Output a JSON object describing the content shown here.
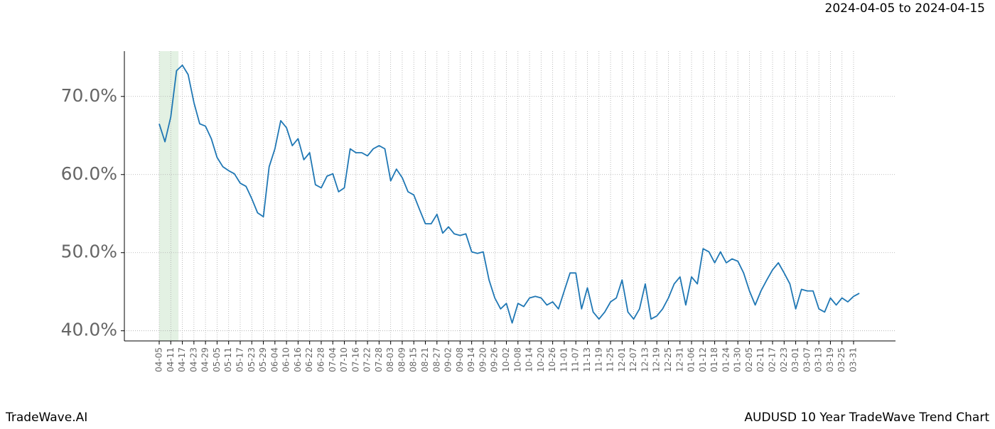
{
  "header": {
    "start": "2024-04-05",
    "separator": "to",
    "end": "2024-04-15"
  },
  "footer": {
    "brand": "TradeWave.AI",
    "caption": "AUDUSD 10 Year TradeWave Trend Chart"
  },
  "chart_data": {
    "type": "line",
    "color": "#1f77b4",
    "highlight_color": "#e3f1e3",
    "grid": true,
    "categories": [
      "04-05",
      null,
      "04-11",
      null,
      "04-17",
      null,
      "04-23",
      null,
      "04-29",
      null,
      "05-05",
      null,
      "05-11",
      null,
      "05-17",
      null,
      "05-23",
      null,
      "05-29",
      null,
      "06-04",
      null,
      "06-10",
      null,
      "06-16",
      null,
      "06-22",
      null,
      "06-28",
      null,
      "07-04",
      null,
      "07-10",
      null,
      "07-16",
      null,
      "07-22",
      null,
      "07-28",
      null,
      "08-03",
      null,
      "08-09",
      null,
      "08-15",
      null,
      "08-21",
      null,
      "08-27",
      null,
      "09-02",
      null,
      "09-08",
      null,
      "09-14",
      null,
      "09-20",
      null,
      "09-26",
      null,
      "10-02",
      null,
      "10-08",
      null,
      "10-14",
      null,
      "10-20",
      null,
      "10-26",
      null,
      "11-01",
      null,
      "11-07",
      null,
      "11-13",
      null,
      "11-19",
      null,
      "11-25",
      null,
      "12-01",
      null,
      "12-07",
      null,
      "12-13",
      null,
      "12-19",
      null,
      "12-25",
      null,
      "12-31",
      null,
      "01-06",
      null,
      "01-12",
      null,
      "01-18",
      null,
      "01-24",
      null,
      "01-30",
      null,
      "02-05",
      null,
      "02-11",
      null,
      "02-17",
      null,
      "02-23",
      null,
      "03-01",
      null,
      "03-07",
      null,
      "03-13",
      null,
      "03-19",
      null,
      "03-25",
      null,
      "03-31",
      null
    ],
    "values": [
      66.5,
      64.2,
      67.4,
      73.3,
      74.0,
      72.8,
      69.2,
      66.5,
      66.2,
      64.6,
      62.2,
      61.0,
      60.5,
      60.1,
      58.9,
      58.5,
      56.9,
      55.1,
      54.6,
      61.0,
      63.3,
      66.9,
      66.0,
      63.7,
      64.6,
      61.9,
      62.8,
      58.7,
      58.3,
      59.8,
      60.1,
      57.8,
      58.3,
      63.3,
      62.8,
      62.8,
      62.4,
      63.3,
      63.7,
      63.3,
      59.2,
      60.7,
      59.6,
      57.8,
      57.4,
      55.5,
      53.7,
      53.7,
      54.9,
      52.5,
      53.3,
      52.4,
      52.2,
      52.4,
      50.1,
      49.9,
      50.1,
      46.5,
      44.2,
      42.8,
      43.5,
      41.0,
      43.5,
      43.1,
      44.2,
      44.4,
      44.2,
      43.3,
      43.7,
      42.8,
      45.1,
      47.4,
      47.4,
      42.8,
      45.5,
      42.4,
      41.5,
      42.4,
      43.7,
      44.2,
      46.5,
      42.4,
      41.5,
      42.8,
      46.0,
      41.5,
      41.9,
      42.8,
      44.2,
      46.0,
      46.9,
      43.3,
      46.9,
      46.0,
      50.5,
      50.1,
      48.7,
      50.1,
      48.7,
      49.2,
      48.9,
      47.4,
      45.1,
      43.3,
      45.1,
      46.5,
      47.8,
      48.7,
      47.4,
      46.0,
      42.8,
      45.3,
      45.1,
      45.1,
      42.8,
      42.4,
      44.2,
      43.3,
      44.2,
      43.7,
      44.4,
      44.8
    ],
    "ylim": [
      38.7,
      75.8
    ],
    "yticks": [
      {
        "value": 40,
        "label": "40.0%"
      },
      {
        "value": 50,
        "label": "50.0%"
      },
      {
        "value": 60,
        "label": "60.0%"
      },
      {
        "value": 70,
        "label": "70.0%"
      }
    ]
  }
}
